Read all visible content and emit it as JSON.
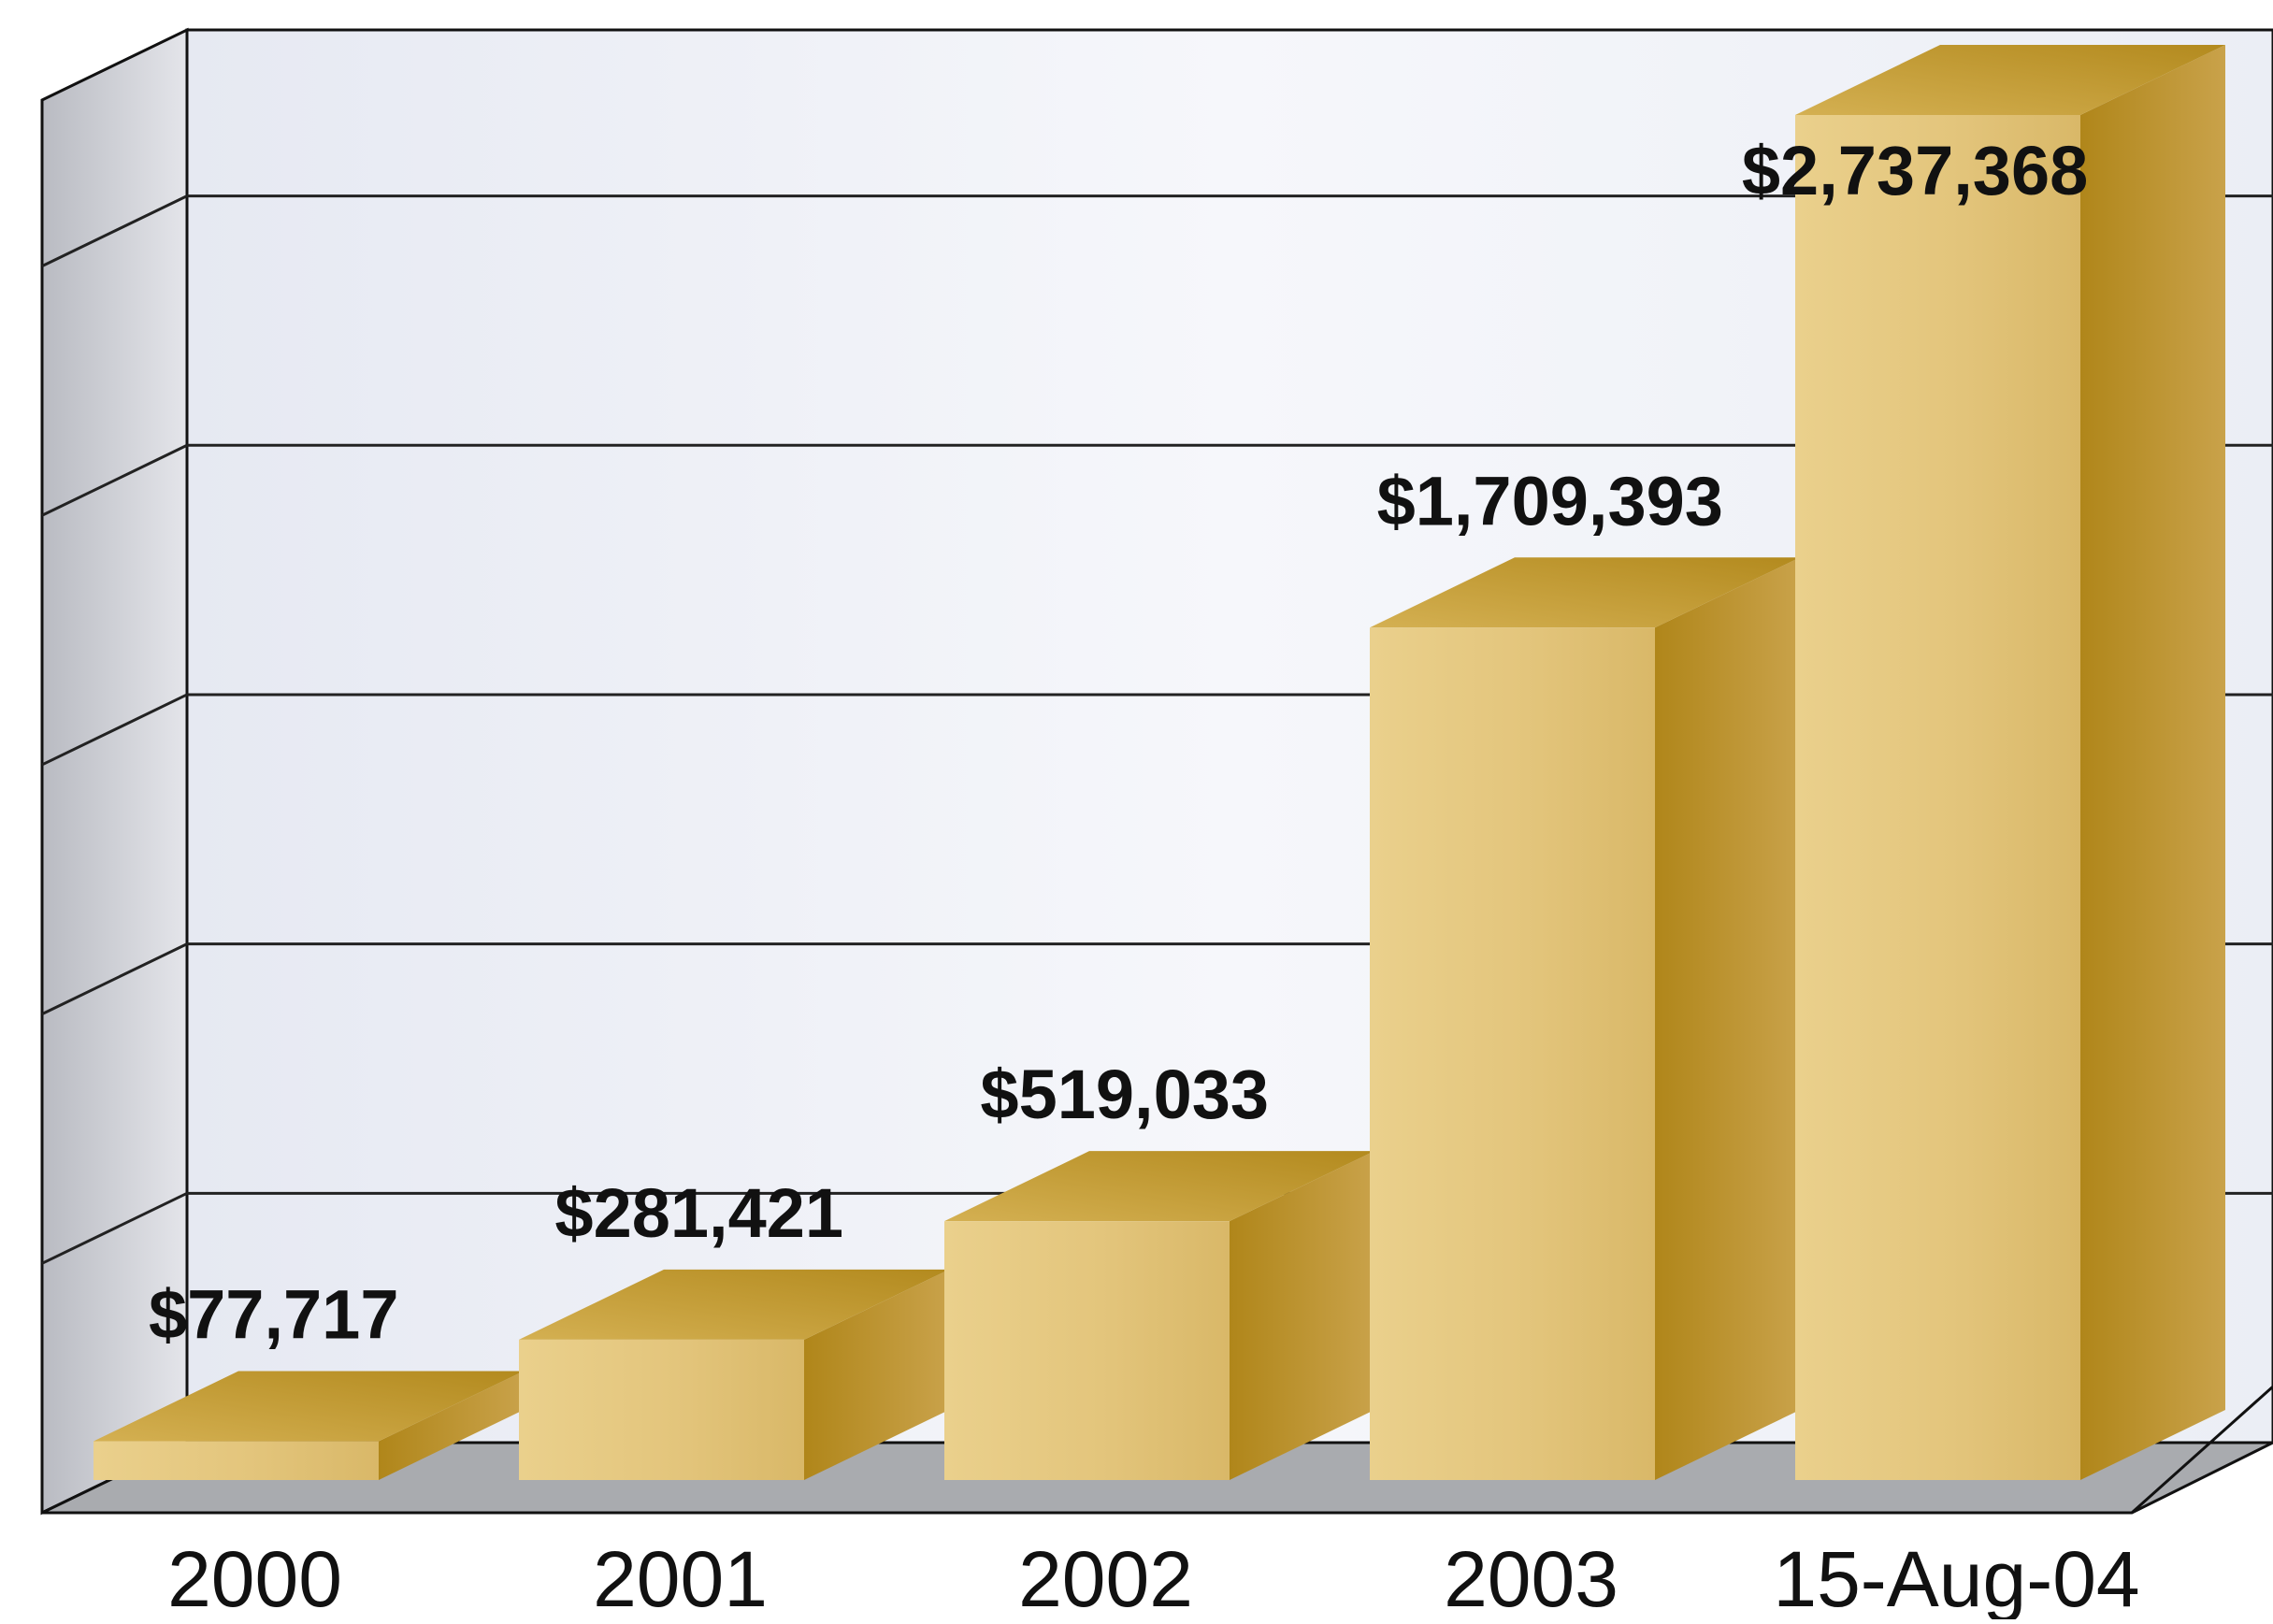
{
  "chart_data": {
    "type": "bar",
    "title": "",
    "xlabel": "",
    "ylabel": "",
    "categories": [
      "2000",
      "2001",
      "2002",
      "2003",
      "15-Aug-04"
    ],
    "values": [
      77717,
      281421,
      519033,
      1709393,
      2737368
    ],
    "value_labels": [
      "$77,717",
      "$281,421",
      "$519,033",
      "$1,709,393",
      "$2,737,368"
    ],
    "ylim": [
      0,
      2900000
    ],
    "grid": true,
    "legend": "none",
    "style": "3d"
  },
  "colors": {
    "bar_front": "#e3c57c",
    "bar_top": "#c69f2c",
    "bar_side": "#a87f14",
    "back_wall": "#eef0f6",
    "left_wall": "#cfd1d8",
    "floor": "#a9abaf",
    "gridline": "#222222",
    "outline": "#111111"
  }
}
